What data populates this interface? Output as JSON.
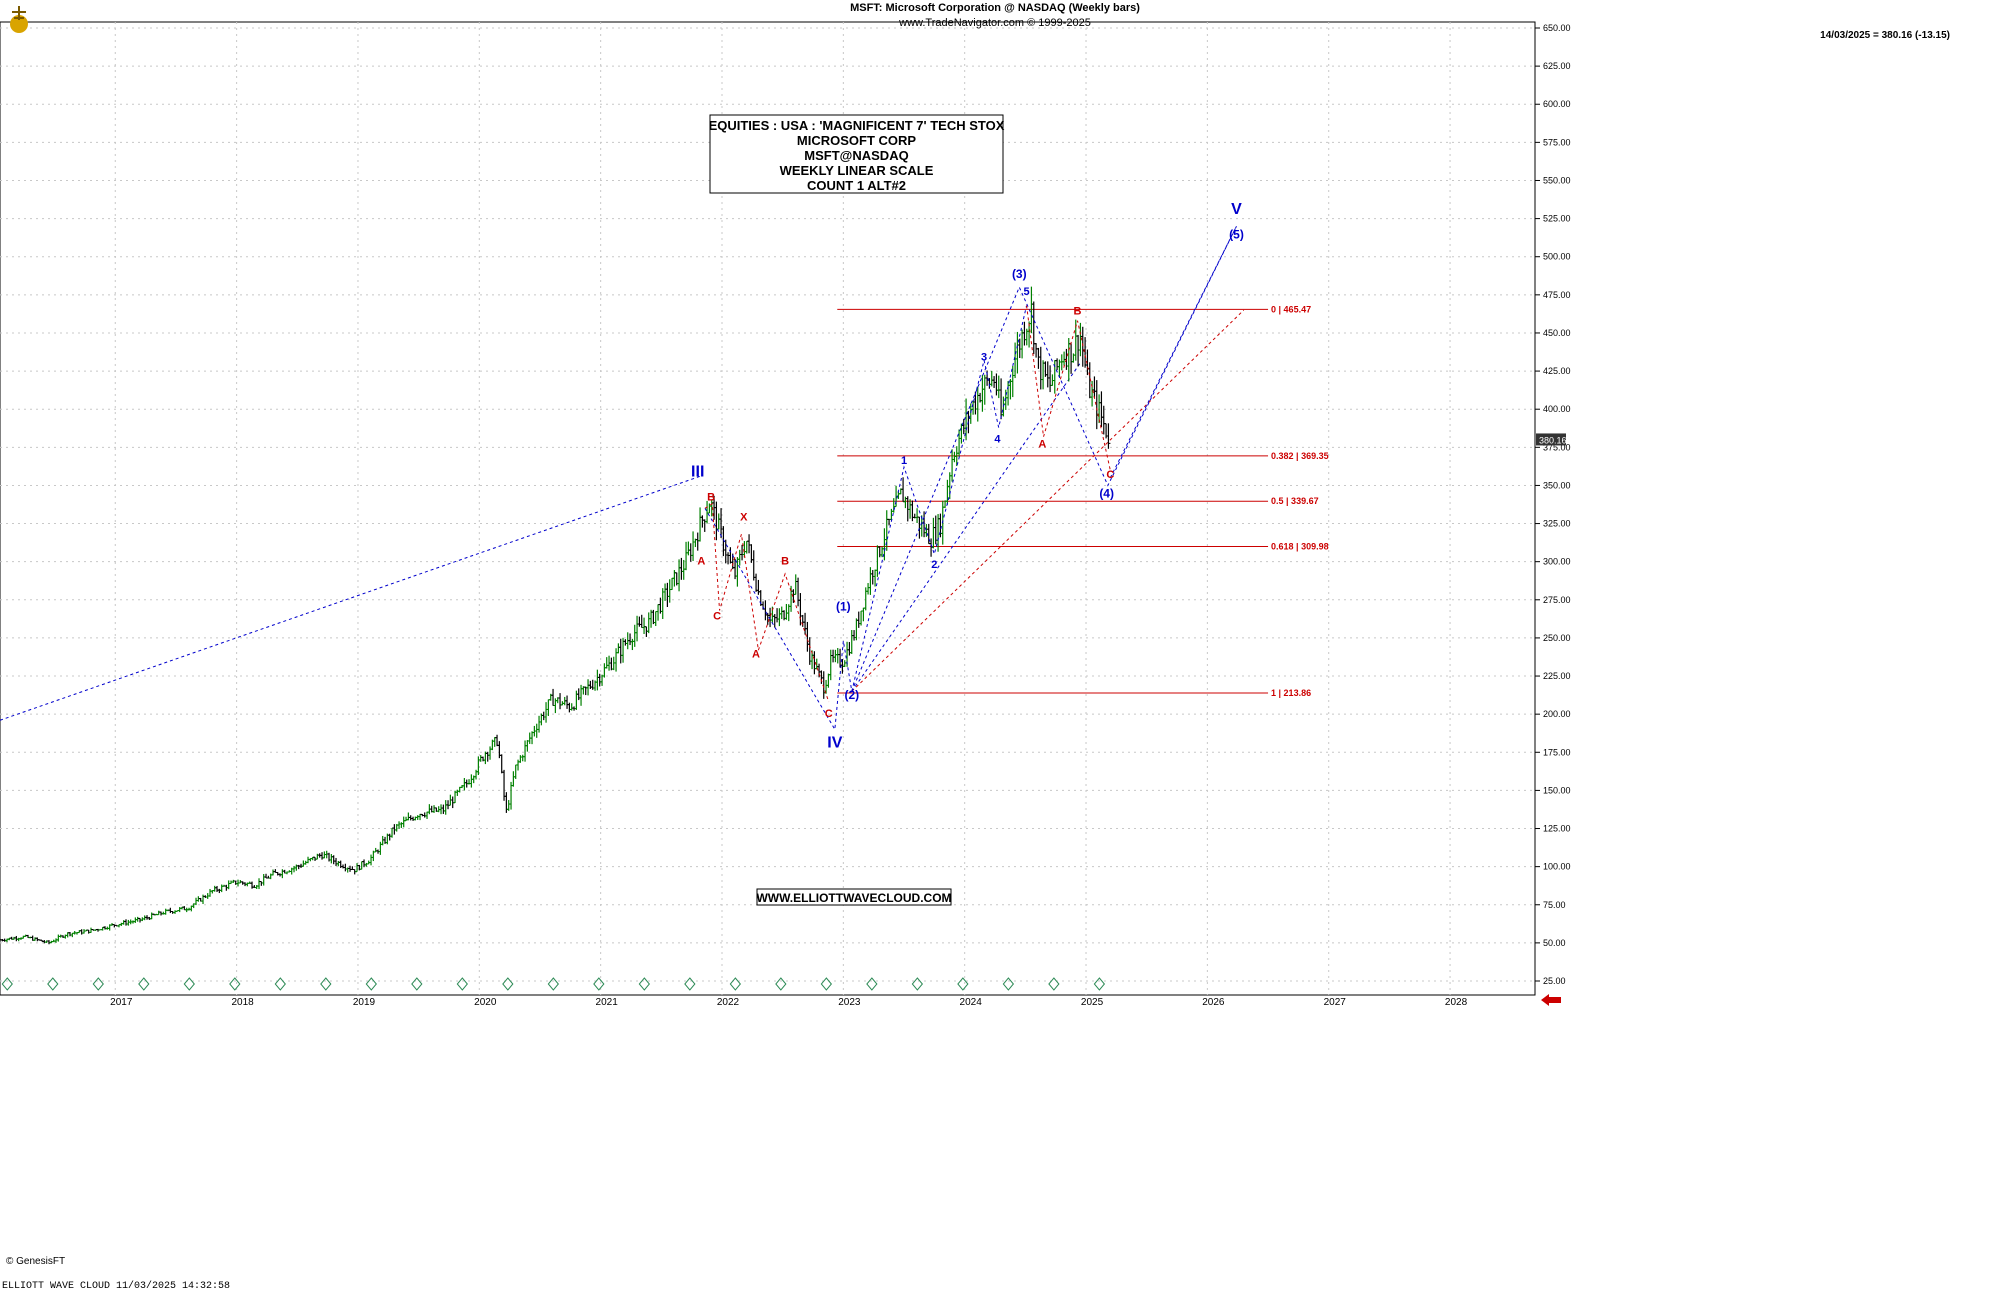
{
  "header": {
    "line1": "MSFT:  Microsoft Corporation @ NASDAQ  (Weekly bars)",
    "line2": "www.TradeNavigator.com © 1999-2025",
    "last_price_note": "14/03/2025 = 380.16 (-13.15)"
  },
  "footer": {
    "left": "ELLIOTT WAVE CLOUD    11/03/2025 14:32:58",
    "brand": "© GenesisFT"
  },
  "colors": {
    "grid": "#c8c8c8",
    "blue": "#0000cc",
    "red": "#cc0000",
    "bull": "#008000",
    "bear": "#000000",
    "pricebox": "#333333"
  },
  "chart_data": {
    "type": "line",
    "title": "EQUITIES : USA : 'MAGNIFICENT 7' TECH STOX",
    "info_box": [
      "EQUITIES : USA : 'MAGNIFICENT 7' TECH STOX",
      "MICROSOFT CORP",
      "MSFT@NASDAQ",
      "WEEKLY LINEAR SCALE",
      "COUNT 1 ALT#2"
    ],
    "watermark": "WWW.ELLIOTTWAVECLOUD.COM",
    "ylim": [
      25,
      650
    ],
    "yticks": [
      25,
      50,
      75,
      100,
      125,
      150,
      175,
      200,
      225,
      250,
      275,
      300,
      325,
      350,
      375,
      400,
      425,
      450,
      475,
      500,
      525,
      550,
      575,
      600,
      625,
      650
    ],
    "ytick_labels": [
      "25.00",
      "50.00",
      "75.00",
      "100.00",
      "125.00",
      "150.00",
      "175.00",
      "200.00",
      "225.00",
      "250.00",
      "275.00",
      "300.00",
      "325.00",
      "350.00",
      "375.00",
      "400.00",
      "425.00",
      "450.00",
      "475.00",
      "500.00",
      "525.00",
      "550.00",
      "575.00",
      "600.00",
      "625.00",
      "650.00"
    ],
    "xlim": [
      2016.05,
      2028.7
    ],
    "xticks": [
      2017,
      2018,
      2019,
      2020,
      2021,
      2022,
      2023,
      2024,
      2025,
      2026,
      2027,
      2028
    ],
    "xtick_labels": [
      "2017",
      "2018",
      "2019",
      "2020",
      "2021",
      "2022",
      "2023",
      "2024",
      "2025",
      "2026",
      "2027",
      "2028"
    ],
    "last_price": 380.16,
    "last_price_label": "380.16",
    "price_path": [
      [
        2016.05,
        52
      ],
      [
        2016.25,
        54
      ],
      [
        2016.45,
        50
      ],
      [
        2016.6,
        56
      ],
      [
        2016.8,
        58
      ],
      [
        2017.0,
        62
      ],
      [
        2017.2,
        65
      ],
      [
        2017.4,
        70
      ],
      [
        2017.6,
        73
      ],
      [
        2017.8,
        84
      ],
      [
        2018.0,
        90
      ],
      [
        2018.15,
        88
      ],
      [
        2018.3,
        95
      ],
      [
        2018.5,
        100
      ],
      [
        2018.7,
        108
      ],
      [
        2018.85,
        102
      ],
      [
        2018.97,
        98
      ],
      [
        2019.1,
        105
      ],
      [
        2019.3,
        125
      ],
      [
        2019.5,
        135
      ],
      [
        2019.7,
        137
      ],
      [
        2019.9,
        155
      ],
      [
        2020.05,
        175
      ],
      [
        2020.15,
        183
      ],
      [
        2020.22,
        135
      ],
      [
        2020.3,
        165
      ],
      [
        2020.45,
        190
      ],
      [
        2020.6,
        210
      ],
      [
        2020.75,
        205
      ],
      [
        2020.95,
        222
      ],
      [
        2021.1,
        235
      ],
      [
        2021.25,
        252
      ],
      [
        2021.4,
        260
      ],
      [
        2021.55,
        280
      ],
      [
        2021.7,
        300
      ],
      [
        2021.85,
        330
      ],
      [
        2021.9,
        340
      ],
      [
        2022.0,
        315
      ],
      [
        2022.1,
        290
      ],
      [
        2022.2,
        315
      ],
      [
        2022.3,
        280
      ],
      [
        2022.4,
        260
      ],
      [
        2022.5,
        265
      ],
      [
        2022.6,
        285
      ],
      [
        2022.72,
        240
      ],
      [
        2022.8,
        225
      ],
      [
        2022.84,
        218
      ],
      [
        2022.9,
        235
      ],
      [
        2023.0,
        235
      ],
      [
        2023.1,
        255
      ],
      [
        2023.2,
        285
      ],
      [
        2023.35,
        320
      ],
      [
        2023.48,
        345
      ],
      [
        2023.58,
        330
      ],
      [
        2023.72,
        315
      ],
      [
        2023.8,
        325
      ],
      [
        2023.9,
        370
      ],
      [
        2024.05,
        400
      ],
      [
        2024.15,
        415
      ],
      [
        2024.25,
        420
      ],
      [
        2024.3,
        395
      ],
      [
        2024.4,
        430
      ],
      [
        2024.5,
        455
      ],
      [
        2024.55,
        465
      ],
      [
        2024.6,
        430
      ],
      [
        2024.7,
        415
      ],
      [
        2024.8,
        435
      ],
      [
        2024.9,
        440
      ],
      [
        2024.95,
        450
      ],
      [
        2025.02,
        415
      ],
      [
        2025.1,
        400
      ],
      [
        2025.17,
        385
      ],
      [
        2025.2,
        380
      ]
    ],
    "fib_levels": [
      {
        "ratio": 0,
        "price": 465.47,
        "label": "0 | 465.47"
      },
      {
        "ratio": 0.382,
        "price": 369.35,
        "label": "0.382 | 369.35"
      },
      {
        "ratio": 0.5,
        "price": 339.67,
        "label": "0.5 | 339.67"
      },
      {
        "ratio": 0.618,
        "price": 309.98,
        "label": "0.618 | 309.98"
      },
      {
        "ratio": 1,
        "price": 213.86,
        "label": "1 | 213.86"
      }
    ],
    "fib_range": [
      2022.95,
      2026.5
    ],
    "wave_labels": [
      {
        "text": "III",
        "x": 2021.8,
        "y": 356,
        "color": "blue",
        "size": 16
      },
      {
        "text": "IV",
        "x": 2022.93,
        "y": 178,
        "color": "blue",
        "size": 16
      },
      {
        "text": "V",
        "x": 2026.24,
        "y": 528,
        "color": "blue",
        "size": 16
      },
      {
        "text": "(1)",
        "x": 2023.0,
        "y": 268,
        "color": "blue",
        "size": 12
      },
      {
        "text": "(2)",
        "x": 2023.07,
        "y": 210,
        "color": "blue",
        "size": 12
      },
      {
        "text": "(3)",
        "x": 2024.45,
        "y": 486,
        "color": "blue",
        "size": 12
      },
      {
        "text": "(4)",
        "x": 2025.17,
        "y": 342,
        "color": "blue",
        "size": 12
      },
      {
        "text": "(5)",
        "x": 2026.24,
        "y": 512,
        "color": "blue",
        "size": 12
      },
      {
        "text": "1",
        "x": 2023.5,
        "y": 364,
        "color": "blue",
        "size": 11
      },
      {
        "text": "2",
        "x": 2023.75,
        "y": 296,
        "color": "blue",
        "size": 11
      },
      {
        "text": "3",
        "x": 2024.16,
        "y": 432,
        "color": "blue",
        "size": 11
      },
      {
        "text": "4",
        "x": 2024.27,
        "y": 378,
        "color": "blue",
        "size": 11
      },
      {
        "text": "5",
        "x": 2024.51,
        "y": 475,
        "color": "blue",
        "size": 11
      },
      {
        "text": "A",
        "x": 2021.83,
        "y": 298,
        "color": "red",
        "size": 11
      },
      {
        "text": "B",
        "x": 2021.91,
        "y": 340,
        "color": "red",
        "size": 11
      },
      {
        "text": "C",
        "x": 2021.96,
        "y": 262,
        "color": "red",
        "size": 11
      },
      {
        "text": "X",
        "x": 2022.18,
        "y": 327,
        "color": "red",
        "size": 11
      },
      {
        "text": "A",
        "x": 2022.28,
        "y": 237,
        "color": "red",
        "size": 11
      },
      {
        "text": "B",
        "x": 2022.52,
        "y": 298,
        "color": "red",
        "size": 11
      },
      {
        "text": "C",
        "x": 2022.88,
        "y": 198,
        "color": "red",
        "size": 11
      },
      {
        "text": "A",
        "x": 2024.64,
        "y": 375,
        "color": "red",
        "size": 11
      },
      {
        "text": "B",
        "x": 2024.93,
        "y": 462,
        "color": "red",
        "size": 11
      },
      {
        "text": "C",
        "x": 2025.2,
        "y": 355,
        "color": "red",
        "size": 11
      }
    ],
    "blue_path": [
      [
        2021.86,
        335
      ],
      [
        2022.93,
        190
      ],
      [
        2023.0,
        248
      ],
      [
        2023.07,
        215
      ],
      [
        2024.45,
        480
      ],
      [
        2025.18,
        350
      ],
      [
        2026.24,
        520
      ]
    ],
    "blue_subpath": [
      [
        2023.07,
        215
      ],
      [
        2023.5,
        362
      ],
      [
        2023.75,
        305
      ],
      [
        2024.16,
        432
      ],
      [
        2024.28,
        388
      ],
      [
        2024.51,
        468
      ]
    ],
    "red_abc_1": [
      [
        2021.86,
        335
      ],
      [
        2021.92,
        338
      ],
      [
        2021.98,
        268
      ],
      [
        2022.16,
        318
      ],
      [
        2022.3,
        242
      ],
      [
        2022.52,
        292
      ],
      [
        2022.88,
        208
      ]
    ],
    "red_abc_2": [
      [
        2024.51,
        468
      ],
      [
        2024.65,
        382
      ],
      [
        2024.93,
        458
      ],
      [
        2025.2,
        360
      ]
    ],
    "trendlines": [
      {
        "from": [
          2016.05,
          196
        ],
        "to": [
          2021.82,
          356
        ],
        "color": "blue"
      },
      {
        "from": [
          2023.07,
          215
        ],
        "to": [
          2026.3,
          465
        ],
        "color": "red"
      },
      {
        "from": [
          2023.07,
          215
        ],
        "to": [
          2024.95,
          430
        ],
        "color": "blue"
      },
      {
        "from": [
          2025.2,
          355
        ],
        "to": [
          2026.24,
          520
        ],
        "color": "blue"
      }
    ]
  }
}
